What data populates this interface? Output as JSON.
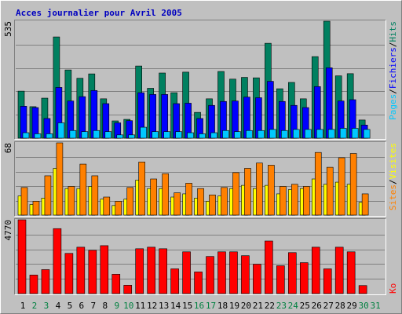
{
  "chart_data": [
    {
      "type": "bar",
      "title": "Acces journalier pour Avril 2005",
      "ylim": [
        0,
        535
      ],
      "yticks": [
        535
      ],
      "series": [
        {
          "name": "Pages",
          "color": "#00c8ff",
          "values": [
            25,
            20,
            20,
            70,
            35,
            30,
            35,
            30,
            15,
            15,
            50,
            30,
            30,
            30,
            25,
            20,
            25,
            35,
            30,
            35,
            35,
            40,
            35,
            40,
            40,
            40,
            40,
            45,
            45,
            40,
            0
          ]
        },
        {
          "name": "Fichiers",
          "color": "#0000ff",
          "values": [
            146,
            140,
            90,
            232,
            170,
            190,
            218,
            158,
            70,
            80,
            208,
            200,
            200,
            158,
            160,
            90,
            150,
            168,
            170,
            188,
            185,
            260,
            168,
            150,
            140,
            236,
            322,
            170,
            176,
            60,
            0
          ]
        },
        {
          "name": "Hits",
          "color": "#008060",
          "values": [
            215,
            144,
            183,
            463,
            312,
            274,
            294,
            180,
            79,
            86,
            330,
            228,
            298,
            208,
            302,
            118,
            180,
            305,
            270,
            278,
            276,
            434,
            226,
            255,
            180,
            373,
            535,
            285,
            295,
            83,
            0
          ]
        }
      ]
    },
    {
      "type": "bar",
      "ylim": [
        0,
        68
      ],
      "yticks": [
        68
      ],
      "series": [
        {
          "name": "Sites",
          "color": "#ff8000",
          "values": [
            26,
            13,
            37,
            68,
            27,
            48,
            37,
            17,
            13,
            26,
            50,
            34,
            39,
            21,
            30,
            25,
            19,
            26,
            40,
            44,
            49,
            47,
            27,
            29,
            27,
            59,
            45,
            54,
            58,
            20,
            0
          ]
        },
        {
          "name": "Visites",
          "color": "#ffff00",
          "values": [
            18,
            10,
            16,
            44,
            25,
            25,
            27,
            15,
            9,
            15,
            33,
            25,
            25,
            17,
            20,
            16,
            13,
            18,
            25,
            28,
            25,
            28,
            20,
            24,
            25,
            34,
            29,
            31,
            29,
            12,
            0
          ]
        }
      ]
    },
    {
      "type": "bar",
      "ylim": [
        0,
        4770
      ],
      "yticks": [
        4770
      ],
      "categories": [
        "1",
        "2",
        "3",
        "4",
        "5",
        "6",
        "7",
        "8",
        "9",
        "10",
        "11",
        "12",
        "13",
        "14",
        "15",
        "16",
        "17",
        "18",
        "19",
        "20",
        "21",
        "22",
        "23",
        "24",
        "25",
        "26",
        "27",
        "28",
        "29",
        "30",
        "31"
      ],
      "category_colors": [
        "#000000",
        "#008040",
        "#008040",
        "#000000",
        "#000000",
        "#000000",
        "#000000",
        "#000000",
        "#008040",
        "#008040",
        "#000000",
        "#000000",
        "#000000",
        "#000000",
        "#000000",
        "#008040",
        "#008040",
        "#000000",
        "#000000",
        "#000000",
        "#000000",
        "#000000",
        "#008040",
        "#008040",
        "#000000",
        "#000000",
        "#000000",
        "#000000",
        "#000000",
        "#008040",
        "#008040"
      ],
      "series": [
        {
          "name": "Ko",
          "color": "#ff0000",
          "values": [
            4770,
            1200,
            1550,
            4200,
            2600,
            3000,
            2800,
            3100,
            1250,
            540,
            2900,
            3000,
            2900,
            1600,
            2700,
            1400,
            2400,
            2700,
            2700,
            2450,
            1900,
            3400,
            1800,
            2650,
            2000,
            3000,
            1600,
            3000,
            2700,
            520,
            0
          ]
        }
      ]
    }
  ]
}
